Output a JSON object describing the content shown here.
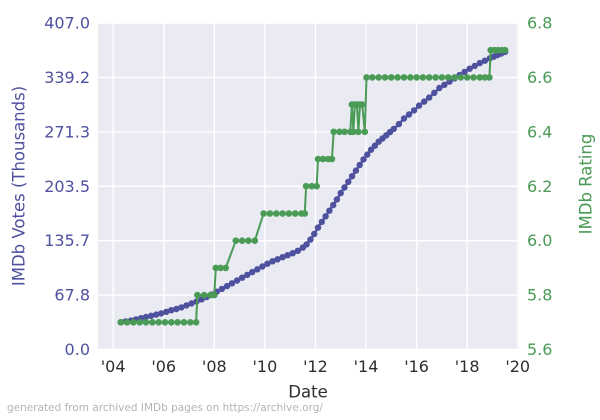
{
  "footer": {
    "note": "generated from archived IMDb pages on https://archive.org/"
  },
  "chart_data": {
    "type": "line",
    "title": "",
    "xlabel": "Date",
    "ylabel_left": "IMDb Votes (Thousands)",
    "ylabel_right": "IMDb Rating",
    "grid": true,
    "legend": "none",
    "plot_bg_color": "#eaeaf2",
    "grid_color": "#ffffff",
    "x_axis": {
      "range": [
        2003.4,
        2020.05
      ],
      "ticks": [
        2004,
        2006,
        2008,
        2010,
        2012,
        2014,
        2016,
        2018,
        2020
      ],
      "tick_labels": [
        "'04",
        "'06",
        "'08",
        "'10",
        "'12",
        "'14",
        "'16",
        "'18",
        "'20"
      ],
      "tick_color": "#2e2e2e"
    },
    "y_axis_left": {
      "range": [
        0,
        407
      ],
      "ticks": [
        0,
        67.8,
        135.7,
        203.5,
        271.3,
        339.2,
        407.0
      ],
      "tick_labels": [
        "0.0",
        "67.8",
        "135.7",
        "203.5",
        "271.3",
        "339.2",
        "407.0"
      ],
      "tick_color": "#4f51a0"
    },
    "y_axis_right": {
      "range": [
        5.6,
        6.8
      ],
      "ticks": [
        5.6,
        5.8,
        6.0,
        6.2,
        6.4,
        6.6,
        6.8
      ],
      "tick_labels": [
        "5.6",
        "5.8",
        "6.0",
        "6.2",
        "6.4",
        "6.6",
        "6.8"
      ],
      "tick_color": "#4a9b55"
    },
    "series": [
      {
        "name": "imdb-votes-thousands",
        "axis": "left",
        "color": "#4e519d",
        "marker_radius": 3.2,
        "line_width": 2.4,
        "points": [
          [
            2004.3,
            34
          ],
          [
            2004.5,
            35
          ],
          [
            2004.7,
            36
          ],
          [
            2004.9,
            37.5
          ],
          [
            2005.1,
            39
          ],
          [
            2005.3,
            40.5
          ],
          [
            2005.5,
            42
          ],
          [
            2005.7,
            43.5
          ],
          [
            2005.9,
            45
          ],
          [
            2006.1,
            47
          ],
          [
            2006.3,
            49
          ],
          [
            2006.5,
            50.5
          ],
          [
            2006.7,
            52.5
          ],
          [
            2006.9,
            55
          ],
          [
            2007.1,
            57.5
          ],
          [
            2007.3,
            60
          ],
          [
            2007.5,
            62.5
          ],
          [
            2007.7,
            65.5
          ],
          [
            2007.9,
            68.5
          ],
          [
            2008.1,
            72
          ],
          [
            2008.3,
            75.5
          ],
          [
            2008.5,
            79
          ],
          [
            2008.7,
            82.5
          ],
          [
            2008.9,
            86
          ],
          [
            2009.1,
            89.5
          ],
          [
            2009.3,
            93
          ],
          [
            2009.5,
            96.5
          ],
          [
            2009.7,
            100
          ],
          [
            2009.9,
            103.5
          ],
          [
            2010.1,
            107
          ],
          [
            2010.3,
            110
          ],
          [
            2010.5,
            112.5
          ],
          [
            2010.7,
            115
          ],
          [
            2010.9,
            117.5
          ],
          [
            2011.1,
            120
          ],
          [
            2011.3,
            123
          ],
          [
            2011.5,
            127
          ],
          [
            2011.65,
            131
          ],
          [
            2011.8,
            137
          ],
          [
            2011.95,
            144
          ],
          [
            2012.1,
            152
          ],
          [
            2012.25,
            159
          ],
          [
            2012.4,
            166
          ],
          [
            2012.55,
            173
          ],
          [
            2012.7,
            180
          ],
          [
            2012.85,
            187
          ],
          [
            2013.0,
            195
          ],
          [
            2013.15,
            202
          ],
          [
            2013.3,
            209
          ],
          [
            2013.45,
            216
          ],
          [
            2013.6,
            223
          ],
          [
            2013.75,
            230
          ],
          [
            2013.9,
            237
          ],
          [
            2014.05,
            243
          ],
          [
            2014.2,
            249
          ],
          [
            2014.35,
            254
          ],
          [
            2014.5,
            259
          ],
          [
            2014.65,
            263
          ],
          [
            2014.8,
            267
          ],
          [
            2014.95,
            271
          ],
          [
            2015.1,
            275
          ],
          [
            2015.3,
            281
          ],
          [
            2015.5,
            288
          ],
          [
            2015.7,
            293
          ],
          [
            2015.9,
            298
          ],
          [
            2016.1,
            304
          ],
          [
            2016.3,
            309
          ],
          [
            2016.5,
            314
          ],
          [
            2016.7,
            320
          ],
          [
            2016.9,
            326
          ],
          [
            2017.1,
            330
          ],
          [
            2017.3,
            334
          ],
          [
            2017.5,
            338
          ],
          [
            2017.7,
            342
          ],
          [
            2017.9,
            346
          ],
          [
            2018.1,
            350
          ],
          [
            2018.3,
            353.5
          ],
          [
            2018.5,
            357
          ],
          [
            2018.7,
            360
          ],
          [
            2018.9,
            363
          ],
          [
            2019.05,
            365
          ],
          [
            2019.2,
            367
          ],
          [
            2019.35,
            369
          ],
          [
            2019.5,
            371
          ]
        ]
      },
      {
        "name": "imdb-rating",
        "axis": "right",
        "color": "#4a9b55",
        "marker_radius": 3.3,
        "line_width": 2,
        "points": [
          [
            2004.3,
            5.7
          ],
          [
            2004.55,
            5.7
          ],
          [
            2004.8,
            5.7
          ],
          [
            2005.05,
            5.7
          ],
          [
            2005.3,
            5.7
          ],
          [
            2005.55,
            5.7
          ],
          [
            2005.8,
            5.7
          ],
          [
            2006.05,
            5.7
          ],
          [
            2006.3,
            5.7
          ],
          [
            2006.55,
            5.7
          ],
          [
            2006.8,
            5.7
          ],
          [
            2007.05,
            5.7
          ],
          [
            2007.28,
            5.7
          ],
          [
            2007.33,
            5.8
          ],
          [
            2007.6,
            5.8
          ],
          [
            2007.85,
            5.8
          ],
          [
            2008.0,
            5.8
          ],
          [
            2008.06,
            5.9
          ],
          [
            2008.25,
            5.9
          ],
          [
            2008.45,
            5.9
          ],
          [
            2008.85,
            6.0
          ],
          [
            2009.1,
            6.0
          ],
          [
            2009.35,
            6.0
          ],
          [
            2009.6,
            6.0
          ],
          [
            2009.95,
            6.1
          ],
          [
            2010.2,
            6.1
          ],
          [
            2010.45,
            6.1
          ],
          [
            2010.7,
            6.1
          ],
          [
            2010.95,
            6.1
          ],
          [
            2011.2,
            6.1
          ],
          [
            2011.45,
            6.1
          ],
          [
            2011.58,
            6.1
          ],
          [
            2011.63,
            6.2
          ],
          [
            2011.85,
            6.2
          ],
          [
            2012.05,
            6.2
          ],
          [
            2012.1,
            6.3
          ],
          [
            2012.3,
            6.3
          ],
          [
            2012.5,
            6.3
          ],
          [
            2012.65,
            6.3
          ],
          [
            2012.72,
            6.4
          ],
          [
            2012.95,
            6.4
          ],
          [
            2013.15,
            6.4
          ],
          [
            2013.38,
            6.4
          ],
          [
            2013.44,
            6.5
          ],
          [
            2013.5,
            6.4
          ],
          [
            2013.56,
            6.5
          ],
          [
            2013.64,
            6.5
          ],
          [
            2013.7,
            6.4
          ],
          [
            2013.76,
            6.5
          ],
          [
            2013.85,
            6.5
          ],
          [
            2013.95,
            6.4
          ],
          [
            2014.02,
            6.6
          ],
          [
            2014.25,
            6.6
          ],
          [
            2014.5,
            6.6
          ],
          [
            2014.75,
            6.6
          ],
          [
            2015.0,
            6.6
          ],
          [
            2015.25,
            6.6
          ],
          [
            2015.5,
            6.6
          ],
          [
            2015.75,
            6.6
          ],
          [
            2016.0,
            6.6
          ],
          [
            2016.25,
            6.6
          ],
          [
            2016.5,
            6.6
          ],
          [
            2016.75,
            6.6
          ],
          [
            2017.0,
            6.6
          ],
          [
            2017.25,
            6.6
          ],
          [
            2017.5,
            6.6
          ],
          [
            2017.75,
            6.6
          ],
          [
            2018.0,
            6.6
          ],
          [
            2018.25,
            6.6
          ],
          [
            2018.5,
            6.6
          ],
          [
            2018.7,
            6.6
          ],
          [
            2018.88,
            6.6
          ],
          [
            2018.93,
            6.7
          ],
          [
            2019.08,
            6.7
          ],
          [
            2019.22,
            6.7
          ],
          [
            2019.36,
            6.7
          ],
          [
            2019.5,
            6.7
          ]
        ]
      }
    ]
  }
}
